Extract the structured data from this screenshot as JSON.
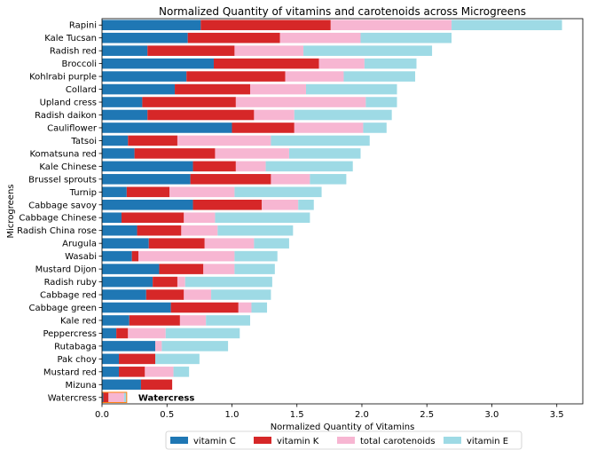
{
  "chart_data": {
    "type": "bar",
    "orientation": "horizontal",
    "stacked": true,
    "title": "Normalized Quantity of vitamins and carotenoids across Microgreens",
    "xlabel": "Normalized Quantity of Vitamins",
    "ylabel": "Microgreens",
    "xlim": [
      0,
      3.7
    ],
    "xticks": [
      "0.0",
      "0.5",
      "1.0",
      "1.5",
      "2.0",
      "2.5",
      "3.0",
      "3.5"
    ],
    "grid": false,
    "legend_position": "bottom-center",
    "categories": [
      "Rapini",
      "Kale Tucsan",
      "Radish red",
      "Broccoli",
      "Kohlrabi purple",
      "Collard",
      "Upland cress",
      "Radish daikon",
      "Cauliflower",
      "Tatsoi",
      "Komatsuna red",
      "Kale Chinese",
      "Brussel sprouts",
      "Turnip",
      "Cabbage savoy",
      "Cabbage Chinese",
      "Radish China rose",
      "Arugula",
      "Wasabi",
      "Mustard Dijon",
      "Radish ruby",
      "Cabbage red",
      "Cabbage green",
      "Kale red",
      "Peppercress",
      "Rutabaga",
      "Pak choy",
      "Mustard red",
      "Mizuna",
      "Watercress"
    ],
    "series": [
      {
        "name": "vitamin C",
        "color": "#1f77b4",
        "values": [
          0.76,
          0.66,
          0.35,
          0.86,
          0.65,
          0.56,
          0.31,
          0.35,
          1.0,
          0.2,
          0.25,
          0.7,
          0.68,
          0.19,
          0.7,
          0.15,
          0.27,
          0.36,
          0.23,
          0.44,
          0.39,
          0.34,
          0.53,
          0.21,
          0.11,
          0.41,
          0.13,
          0.13,
          0.3,
          0.01
        ]
      },
      {
        "name": "vitamin K",
        "color": "#d62728",
        "values": [
          1.0,
          0.71,
          0.67,
          0.81,
          0.76,
          0.58,
          0.72,
          0.82,
          0.48,
          0.38,
          0.62,
          0.33,
          0.62,
          0.33,
          0.53,
          0.48,
          0.34,
          0.43,
          0.05,
          0.34,
          0.19,
          0.29,
          0.52,
          0.39,
          0.09,
          0.0,
          0.28,
          0.2,
          0.24,
          0.04
        ]
      },
      {
        "name": "total carotenoids",
        "color": "#f7b6d2",
        "values": [
          0.93,
          0.62,
          0.53,
          0.35,
          0.45,
          0.43,
          1.0,
          0.31,
          0.53,
          0.72,
          0.57,
          0.23,
          0.3,
          0.5,
          0.28,
          0.24,
          0.28,
          0.38,
          0.74,
          0.24,
          0.06,
          0.21,
          0.1,
          0.2,
          0.29,
          0.05,
          0.0,
          0.22,
          0.0,
          0.12
        ]
      },
      {
        "name": "vitamin E",
        "color": "#9edae5",
        "values": [
          0.85,
          0.7,
          0.99,
          0.4,
          0.55,
          0.7,
          0.24,
          0.75,
          0.18,
          0.76,
          0.55,
          0.67,
          0.28,
          0.67,
          0.12,
          0.73,
          0.58,
          0.27,
          0.33,
          0.31,
          0.67,
          0.46,
          0.12,
          0.34,
          0.57,
          0.51,
          0.34,
          0.12,
          0.0,
          0.02
        ]
      }
    ],
    "annotations": [
      {
        "category": "Watercress",
        "text": "Watercress"
      }
    ]
  }
}
